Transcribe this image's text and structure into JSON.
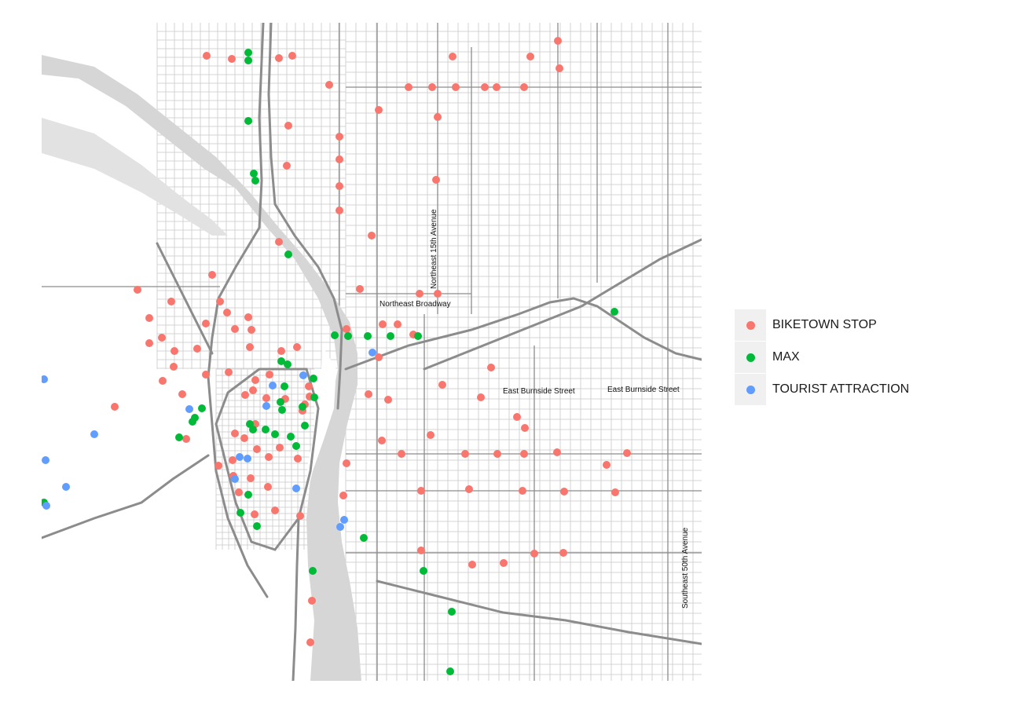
{
  "map": {
    "street_labels": [
      "Northeast 15th Avenue",
      "Northeast Broadway",
      "East Burnside Street",
      "East Burnside Street",
      "Southeast 50th Avenue"
    ],
    "river_color": "#d6d6d6",
    "road_color": "#8c8c8c",
    "minor_road_color": "#c8c8c8"
  },
  "legend": {
    "items": [
      {
        "label": "BIKETOWN STOP",
        "color": "#f8766d"
      },
      {
        "label": "MAX",
        "color": "#00ba38"
      },
      {
        "label": "TOURIST ATTRACTION",
        "color": "#619cff"
      }
    ]
  },
  "points": {
    "biketown": [
      [
        263,
        71
      ],
      [
        295,
        75
      ],
      [
        355,
        74
      ],
      [
        372,
        71
      ],
      [
        576,
        72
      ],
      [
        675,
        72
      ],
      [
        710,
        52
      ],
      [
        712,
        87
      ],
      [
        419,
        108
      ],
      [
        520,
        111
      ],
      [
        550,
        111
      ],
      [
        580,
        111
      ],
      [
        617,
        111
      ],
      [
        632,
        111
      ],
      [
        667,
        111
      ],
      [
        482,
        140
      ],
      [
        557,
        149
      ],
      [
        367,
        160
      ],
      [
        432,
        174
      ],
      [
        432,
        203
      ],
      [
        365,
        211
      ],
      [
        432,
        237
      ],
      [
        432,
        268
      ],
      [
        555,
        229
      ],
      [
        473,
        300
      ],
      [
        355,
        308
      ],
      [
        458,
        368
      ],
      [
        534,
        374
      ],
      [
        557,
        374
      ],
      [
        270,
        350
      ],
      [
        175,
        369
      ],
      [
        218,
        384
      ],
      [
        280,
        384
      ],
      [
        190,
        405
      ],
      [
        262,
        412
      ],
      [
        206,
        430
      ],
      [
        190,
        437
      ],
      [
        222,
        447
      ],
      [
        251,
        444
      ],
      [
        299,
        419
      ],
      [
        316,
        404
      ],
      [
        289,
        398
      ],
      [
        320,
        420
      ],
      [
        318,
        442
      ],
      [
        358,
        447
      ],
      [
        378,
        442
      ],
      [
        487,
        413
      ],
      [
        506,
        413
      ],
      [
        526,
        426
      ],
      [
        441,
        419
      ],
      [
        482,
        455
      ],
      [
        221,
        467
      ],
      [
        262,
        477
      ],
      [
        291,
        474
      ],
      [
        207,
        485
      ],
      [
        232,
        502
      ],
      [
        146,
        518
      ],
      [
        325,
        484
      ],
      [
        343,
        477
      ],
      [
        322,
        497
      ],
      [
        363,
        508
      ],
      [
        312,
        503
      ],
      [
        339,
        507
      ],
      [
        385,
        523
      ],
      [
        393,
        492
      ],
      [
        394,
        505
      ],
      [
        388,
        515
      ],
      [
        469,
        502
      ],
      [
        494,
        509
      ],
      [
        563,
        490
      ],
      [
        625,
        468
      ],
      [
        612,
        506
      ],
      [
        658,
        531
      ],
      [
        668,
        545
      ],
      [
        548,
        554
      ],
      [
        486,
        561
      ],
      [
        325,
        540
      ],
      [
        299,
        552
      ],
      [
        311,
        558
      ],
      [
        327,
        572
      ],
      [
        342,
        582
      ],
      [
        356,
        570
      ],
      [
        379,
        584
      ],
      [
        237,
        559
      ],
      [
        278,
        593
      ],
      [
        296,
        586
      ],
      [
        297,
        606
      ],
      [
        319,
        609
      ],
      [
        341,
        620
      ],
      [
        304,
        627
      ],
      [
        324,
        655
      ],
      [
        350,
        650
      ],
      [
        382,
        657
      ],
      [
        441,
        590
      ],
      [
        437,
        631
      ],
      [
        511,
        578
      ],
      [
        592,
        578
      ],
      [
        633,
        578
      ],
      [
        667,
        578
      ],
      [
        709,
        576
      ],
      [
        798,
        577
      ],
      [
        772,
        592
      ],
      [
        536,
        625
      ],
      [
        597,
        623
      ],
      [
        665,
        625
      ],
      [
        718,
        626
      ],
      [
        783,
        627
      ],
      [
        536,
        701
      ],
      [
        601,
        719
      ],
      [
        641,
        717
      ],
      [
        680,
        705
      ],
      [
        717,
        704
      ],
      [
        397,
        765
      ],
      [
        395,
        818
      ]
    ],
    "max": [
      [
        316,
        67
      ],
      [
        316,
        77
      ],
      [
        316,
        154
      ],
      [
        323,
        221
      ],
      [
        325,
        230
      ],
      [
        367,
        324
      ],
      [
        782,
        397
      ],
      [
        426,
        427
      ],
      [
        443,
        428
      ],
      [
        468,
        428
      ],
      [
        497,
        428
      ],
      [
        532,
        428
      ],
      [
        358,
        460
      ],
      [
        366,
        464
      ],
      [
        362,
        492
      ],
      [
        399,
        482
      ],
      [
        400,
        506
      ],
      [
        385,
        518
      ],
      [
        357,
        512
      ],
      [
        359,
        522
      ],
      [
        257,
        520
      ],
      [
        248,
        532
      ],
      [
        245,
        537
      ],
      [
        318,
        540
      ],
      [
        322,
        547
      ],
      [
        338,
        547
      ],
      [
        350,
        553
      ],
      [
        370,
        556
      ],
      [
        377,
        568
      ],
      [
        388,
        542
      ],
      [
        228,
        557
      ],
      [
        316,
        630
      ],
      [
        306,
        653
      ],
      [
        327,
        670
      ],
      [
        463,
        685
      ],
      [
        398,
        727
      ],
      [
        539,
        727
      ],
      [
        56,
        640
      ],
      [
        575,
        779
      ],
      [
        573,
        855
      ]
    ],
    "tourist": [
      [
        56,
        483
      ],
      [
        120,
        553
      ],
      [
        58,
        586
      ],
      [
        84,
        620
      ],
      [
        59,
        644
      ],
      [
        241,
        521
      ],
      [
        347,
        491
      ],
      [
        339,
        517
      ],
      [
        305,
        582
      ],
      [
        315,
        584
      ],
      [
        299,
        610
      ],
      [
        377,
        622
      ],
      [
        386,
        478
      ],
      [
        474,
        449
      ],
      [
        438,
        662
      ],
      [
        433,
        671
      ]
    ]
  }
}
